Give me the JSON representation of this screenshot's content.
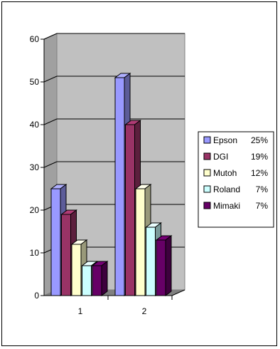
{
  "chart_data": {
    "type": "bar",
    "categories": [
      "1",
      "2"
    ],
    "series": [
      {
        "name": "Epson",
        "legend_pct": "25%",
        "values": [
          25,
          51
        ]
      },
      {
        "name": "DGI",
        "legend_pct": "19%",
        "values": [
          19,
          40
        ]
      },
      {
        "name": "Mutoh",
        "legend_pct": "12%",
        "values": [
          12,
          25
        ]
      },
      {
        "name": "Roland",
        "legend_pct": "7%",
        "values": [
          7,
          16
        ]
      },
      {
        "name": "Mimaki",
        "legend_pct": "7%",
        "values": [
          7,
          13
        ]
      }
    ],
    "y_ticks": [
      "0",
      "10",
      "20",
      "30",
      "40",
      "50",
      "60"
    ],
    "ylim": [
      0,
      60
    ],
    "title": "",
    "xlabel": "",
    "ylabel": "",
    "grid": true,
    "legend_position": "right",
    "style": "3d-column",
    "colors": {
      "Epson": "#9999ff",
      "DGI": "#993366",
      "Mutoh": "#ffffcc",
      "Roland": "#ccffff",
      "Mimaki": "#660066",
      "plot_wall": "#c0c0c0"
    }
  }
}
